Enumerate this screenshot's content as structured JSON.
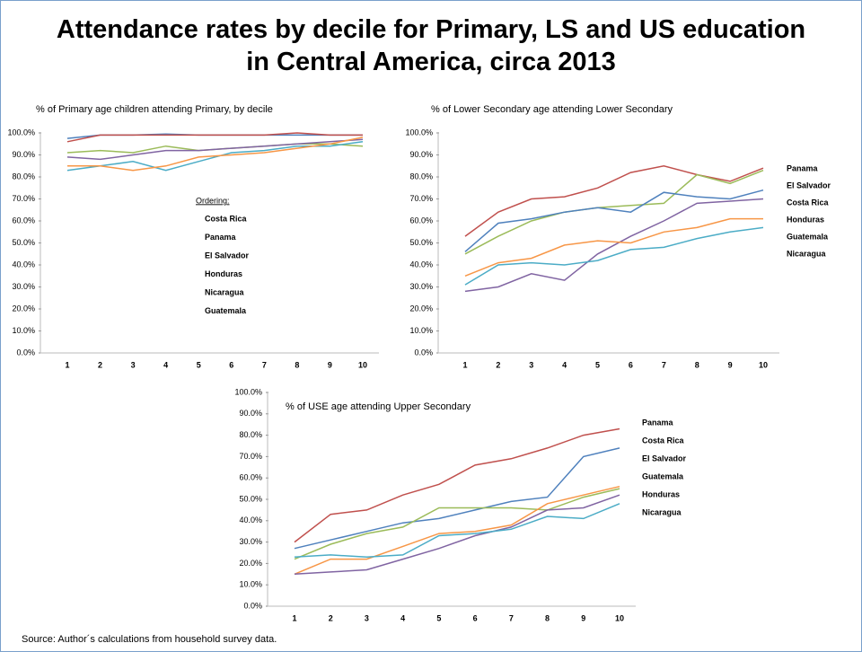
{
  "title": "Attendance rates by decile for Primary, LS and US education in Central America, circa 2013",
  "source": "Source: Author´s calculations from household survey data.",
  "chart_data": [
    {
      "type": "line",
      "title": "% of Primary age children attending  Primary, by decile",
      "legend_title": "Ordering:",
      "categories": [
        "1",
        "2",
        "3",
        "4",
        "5",
        "6",
        "7",
        "8",
        "9",
        "10"
      ],
      "ylim": [
        0,
        100
      ],
      "yticks": [
        {
          "value": 0,
          "label": "0.0%"
        },
        {
          "value": 10,
          "label": "10.0%"
        },
        {
          "value": 20,
          "label": "20.0%"
        },
        {
          "value": 30,
          "label": "30.0%"
        },
        {
          "value": 40,
          "label": "40.0%"
        },
        {
          "value": 50,
          "label": "50.0%"
        },
        {
          "value": 60,
          "label": "60.0%"
        },
        {
          "value": 70,
          "label": "70.0%"
        },
        {
          "value": 80,
          "label": "80.0%"
        },
        {
          "value": 90,
          "label": "90.0%"
        },
        {
          "value": 100,
          "label": "100.0%"
        }
      ],
      "series": [
        {
          "name": "Costa Rica",
          "color": "#4f81bd",
          "values": [
            97.5,
            99,
            99,
            99.5,
            99,
            99,
            99,
            99,
            99,
            99
          ]
        },
        {
          "name": "Panama",
          "color": "#c0504d",
          "values": [
            96,
            99,
            99,
            99,
            99,
            99,
            99,
            100,
            99,
            99
          ]
        },
        {
          "name": "El Salvador",
          "color": "#9bbb59",
          "values": [
            91,
            92,
            91,
            94,
            92,
            93,
            94,
            95,
            95,
            94
          ]
        },
        {
          "name": "Honduras",
          "color": "#8064a2",
          "values": [
            89,
            88,
            90,
            92,
            92,
            93,
            94,
            95,
            96,
            97
          ]
        },
        {
          "name": "Nicaragua",
          "color": "#4bacc6",
          "values": [
            83,
            85,
            87,
            83,
            87,
            91,
            92,
            94,
            94,
            96
          ]
        },
        {
          "name": "Guatemala",
          "color": "#f79646",
          "values": [
            85,
            85,
            83,
            85,
            89,
            90,
            91,
            93,
            95,
            98
          ]
        }
      ]
    },
    {
      "type": "line",
      "title": "% of Lower  Secondary    age attending  Lower  Secondary",
      "categories": [
        "1",
        "2",
        "3",
        "4",
        "5",
        "6",
        "7",
        "8",
        "9",
        "10"
      ],
      "ylim": [
        0,
        100
      ],
      "yticks": [
        {
          "value": 0,
          "label": "0.0%"
        },
        {
          "value": 10,
          "label": "10.0%"
        },
        {
          "value": 20,
          "label": "20.0%"
        },
        {
          "value": 30,
          "label": "30.0%"
        },
        {
          "value": 40,
          "label": "40.0%"
        },
        {
          "value": 50,
          "label": "50.0%"
        },
        {
          "value": 60,
          "label": "60.0%"
        },
        {
          "value": 70,
          "label": "70.0%"
        },
        {
          "value": 80,
          "label": "80.0%"
        },
        {
          "value": 90,
          "label": "90.0%"
        },
        {
          "value": 100,
          "label": "100.0%"
        }
      ],
      "series": [
        {
          "name": "Panama",
          "color": "#c0504d",
          "values": [
            53,
            64,
            70,
            71,
            75,
            82,
            85,
            81,
            78,
            84
          ]
        },
        {
          "name": "El Salvador",
          "color": "#9bbb59",
          "values": [
            45,
            53,
            60,
            64,
            66,
            67,
            68,
            81,
            77,
            83
          ]
        },
        {
          "name": "Costa Rica",
          "color": "#4f81bd",
          "values": [
            46,
            59,
            61,
            64,
            66,
            64,
            73,
            71,
            70,
            74
          ]
        },
        {
          "name": "Honduras",
          "color": "#8064a2",
          "values": [
            28,
            30,
            36,
            33,
            45,
            53,
            60,
            68,
            69,
            70
          ]
        },
        {
          "name": "Guatemala",
          "color": "#f79646",
          "values": [
            35,
            41,
            43,
            49,
            51,
            50,
            55,
            57,
            61,
            61
          ]
        },
        {
          "name": "Nicaragua",
          "color": "#4bacc6",
          "values": [
            31,
            40,
            41,
            40,
            42,
            47,
            48,
            52,
            55,
            57
          ]
        }
      ]
    },
    {
      "type": "line",
      "title": "% of USE age attending  Upper Secondary",
      "categories": [
        "1",
        "2",
        "3",
        "4",
        "5",
        "6",
        "7",
        "8",
        "9",
        "10"
      ],
      "ylim": [
        0,
        100
      ],
      "yticks": [
        {
          "value": 0,
          "label": "0.0%"
        },
        {
          "value": 10,
          "label": "10.0%"
        },
        {
          "value": 20,
          "label": "20.0%"
        },
        {
          "value": 30,
          "label": "30.0%"
        },
        {
          "value": 40,
          "label": "40.0%"
        },
        {
          "value": 50,
          "label": "50.0%"
        },
        {
          "value": 60,
          "label": "60.0%"
        },
        {
          "value": 70,
          "label": "70.0%"
        },
        {
          "value": 80,
          "label": "80.0%"
        },
        {
          "value": 90,
          "label": "90.0%"
        },
        {
          "value": 100,
          "label": "100.0%"
        }
      ],
      "series": [
        {
          "name": "Panama",
          "color": "#c0504d",
          "values": [
            30,
            43,
            45,
            52,
            57,
            66,
            69,
            74,
            80,
            83
          ]
        },
        {
          "name": "Costa Rica",
          "color": "#4f81bd",
          "values": [
            27,
            31,
            35,
            39,
            41,
            45,
            49,
            51,
            70,
            74
          ]
        },
        {
          "name": "El Salvador",
          "color": "#9bbb59",
          "values": [
            22,
            29,
            34,
            37,
            46,
            46,
            46,
            45,
            51,
            55
          ]
        },
        {
          "name": "Guatemala",
          "color": "#f79646",
          "values": [
            15,
            22,
            22,
            28,
            34,
            35,
            38,
            48,
            52,
            56
          ]
        },
        {
          "name": "Honduras",
          "color": "#8064a2",
          "values": [
            15,
            16,
            17,
            22,
            27,
            33,
            37,
            45,
            46,
            52
          ]
        },
        {
          "name": "Nicaragua",
          "color": "#4bacc6",
          "values": [
            23,
            24,
            23,
            24,
            33,
            34,
            36,
            42,
            41,
            48
          ]
        }
      ]
    }
  ]
}
